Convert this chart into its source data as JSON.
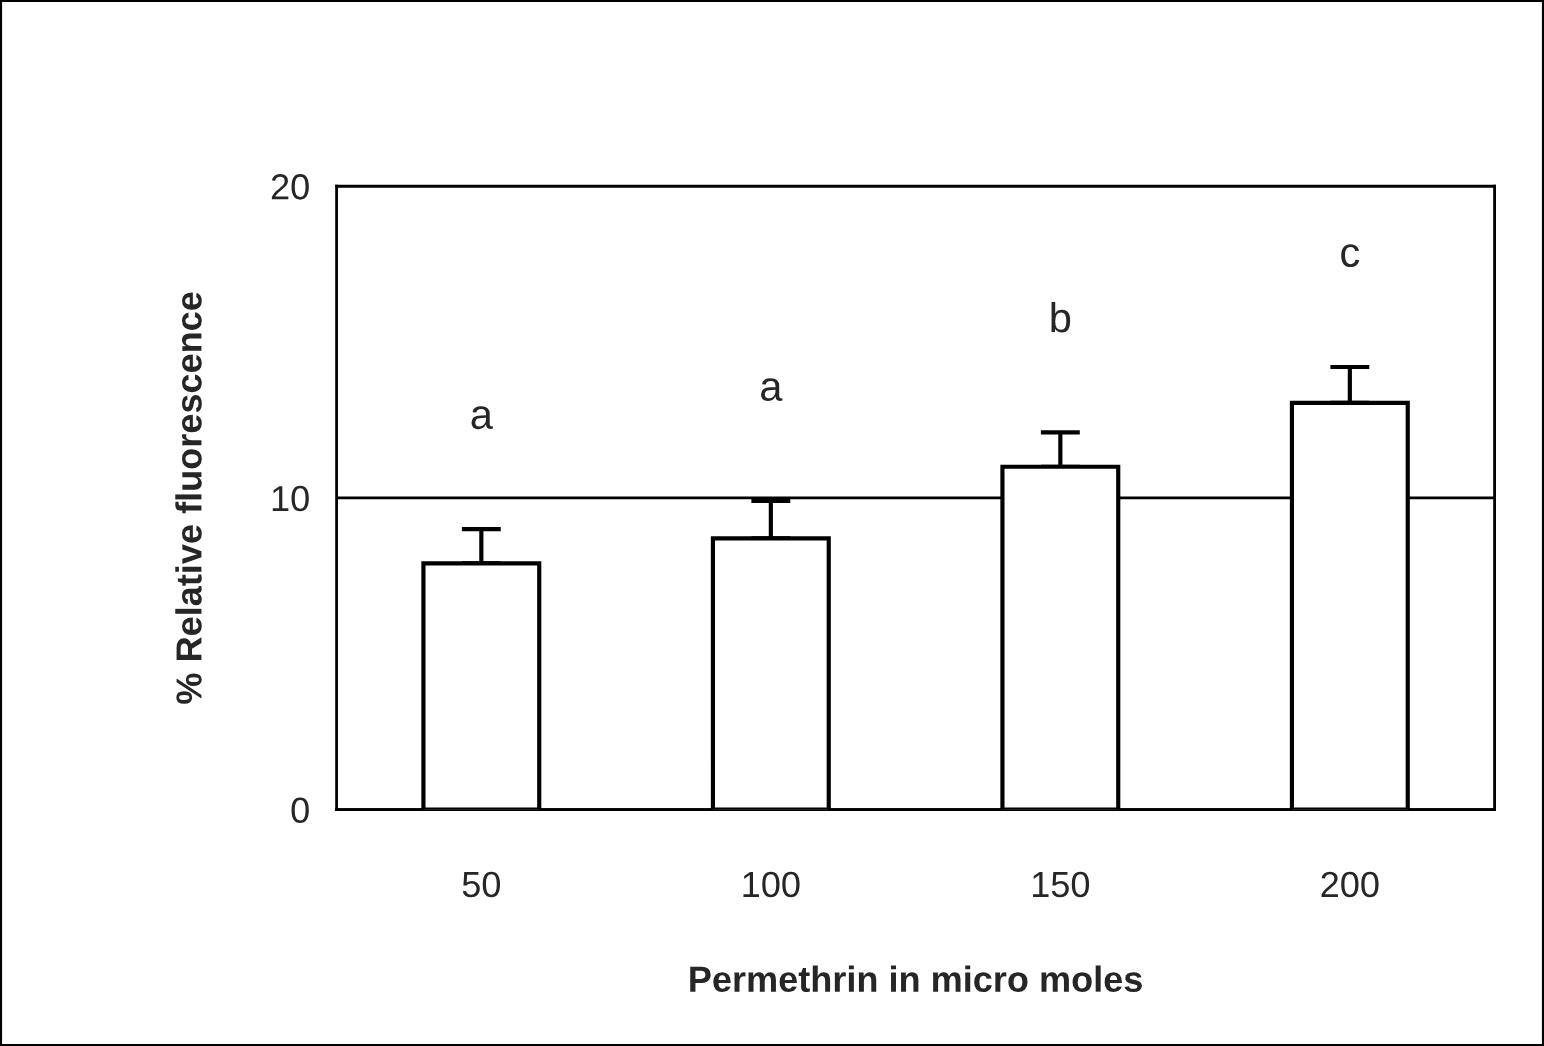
{
  "chart_data": {
    "type": "bar",
    "xlabel": "Permethrin in micro moles",
    "ylabel": "% Relative fluorescence",
    "categories": [
      "50",
      "100",
      "150",
      "200"
    ],
    "values": [
      7.9,
      8.7,
      11.0,
      13.05
    ],
    "errors": [
      [
        7.9,
        9.0
      ],
      [
        8.7,
        9.9
      ],
      [
        11.0,
        12.1
      ],
      [
        13.05,
        14.2
      ]
    ],
    "color": "#ffffff",
    "ylim": [
      0,
      20
    ],
    "yticks": [
      0,
      10,
      20
    ],
    "grid": "y",
    "legend": false,
    "annotations": [
      "a",
      "a",
      "b",
      "c"
    ]
  }
}
